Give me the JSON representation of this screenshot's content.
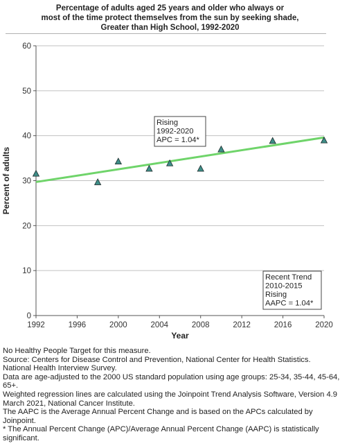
{
  "chart_data": {
    "type": "scatter",
    "title_lines": [
      "Percentage of adults aged 25 years and older who always or",
      "most of the time protect themselves from the sun by seeking shade,",
      "Greater than High School,  1992-2020"
    ],
    "xlabel": "Year",
    "ylabel": "Percent of adults",
    "xlim": [
      1992,
      2020
    ],
    "ylim": [
      0,
      60
    ],
    "x_ticks": [
      1992,
      1996,
      2000,
      2004,
      2008,
      2012,
      2016,
      2020
    ],
    "y_ticks": [
      0,
      10,
      20,
      30,
      40,
      50,
      60
    ],
    "grid": "horizontal",
    "points": [
      {
        "x": 1992,
        "y": 31.6
      },
      {
        "x": 1998,
        "y": 29.7
      },
      {
        "x": 2000,
        "y": 34.3
      },
      {
        "x": 2003,
        "y": 32.7
      },
      {
        "x": 2005,
        "y": 33.9
      },
      {
        "x": 2008,
        "y": 32.7
      },
      {
        "x": 2010,
        "y": 37.0
      },
      {
        "x": 2015,
        "y": 38.9
      },
      {
        "x": 2020,
        "y": 39.0
      }
    ],
    "trend_line": {
      "x": [
        1992,
        2020
      ],
      "y": [
        29.7,
        39.6
      ]
    },
    "colors": {
      "point_fill": "#3e8e88",
      "point_stroke": "#1d2a2a",
      "trend": "#6fd46a",
      "grid": "#c0c0c0",
      "axis": "#555555"
    },
    "annotations": [
      {
        "lines": [
          "Rising",
          "1992-2020",
          "APC =  1.04*"
        ]
      },
      {
        "lines": [
          "Recent Trend",
          "2010-2015",
          "Rising",
          "AAPC =  1.04*"
        ]
      }
    ]
  },
  "footnotes": [
    "No Healthy People Target for this measure.",
    "Source: Centers for Disease Control and Prevention, National Center for Health Statistics. National Health Interview Survey.",
    "Data are age-adjusted to the 2000 US standard population using age groups: 25-34, 35-44, 45-64, 65+.",
    "Weighted regression lines are calculated using the Joinpoint Trend Analysis Software, Version 4.9 March 2021, National Cancer Institute.",
    "The AAPC is the Average Annual Percent Change and is based on the APCs calculated by Joinpoint.",
    "* The Annual Percent Change (APC)/Average Annual Percent Change (AAPC) is statistically significant."
  ]
}
